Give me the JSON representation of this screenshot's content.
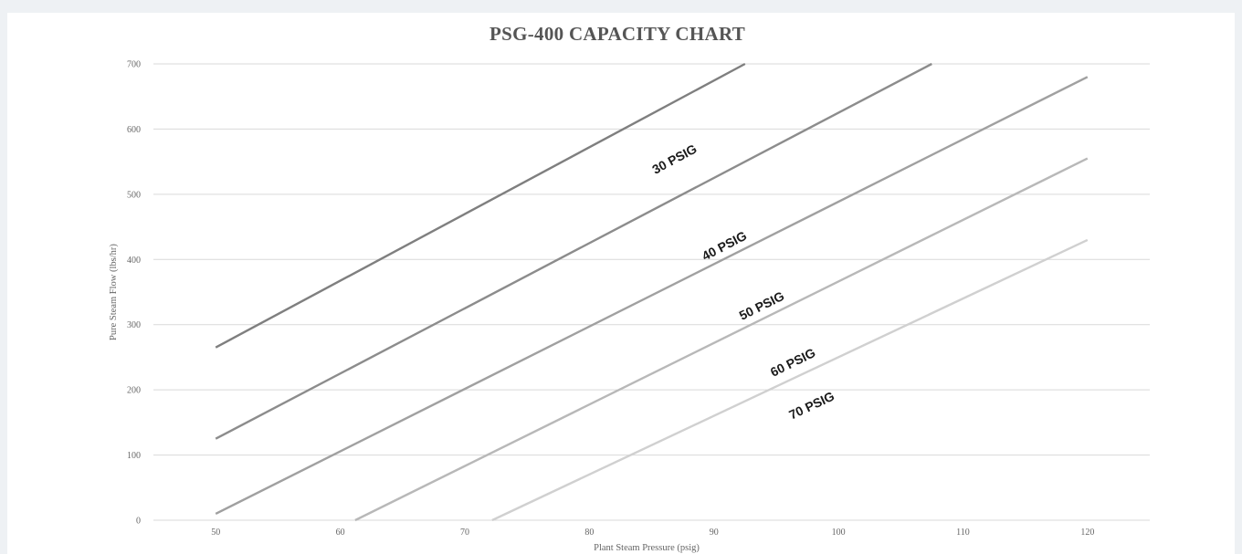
{
  "chart_data": {
    "type": "line",
    "title": "PSG-400 CAPACITY CHART",
    "xlabel": "Plant Steam Pressure (psig)",
    "ylabel": "Pure Steam Flow (lbs/hr)",
    "xlim": [
      45,
      125
    ],
    "ylim": [
      0,
      700
    ],
    "x_ticks": [
      50,
      60,
      70,
      80,
      90,
      100,
      110,
      120
    ],
    "y_ticks": [
      0,
      100,
      200,
      300,
      400,
      500,
      600,
      700
    ],
    "grid": true,
    "legend": "none",
    "series": [
      {
        "name": "30 PSIG",
        "color": "#7f7f7f",
        "points": [
          [
            50,
            265
          ],
          [
            92.5,
            700
          ]
        ],
        "label_at": [
          87,
          548
        ]
      },
      {
        "name": "40 PSIG",
        "color": "#8c8c8c",
        "points": [
          [
            50,
            125
          ],
          [
            107.5,
            700
          ]
        ],
        "label_at": [
          91,
          415
        ]
      },
      {
        "name": "50 PSIG",
        "color": "#a0a0a0",
        "points": [
          [
            50,
            10
          ],
          [
            120,
            680
          ]
        ],
        "label_at": [
          94,
          323
        ]
      },
      {
        "name": "60 PSIG",
        "color": "#b8b8b8",
        "points": [
          [
            61.2,
            0
          ],
          [
            120,
            555
          ]
        ],
        "label_at": [
          96.5,
          236
        ]
      },
      {
        "name": "70 PSIG",
        "color": "#d0d0d0",
        "points": [
          [
            72.2,
            0
          ],
          [
            120,
            430
          ]
        ],
        "label_at": [
          98,
          170
        ]
      }
    ]
  }
}
